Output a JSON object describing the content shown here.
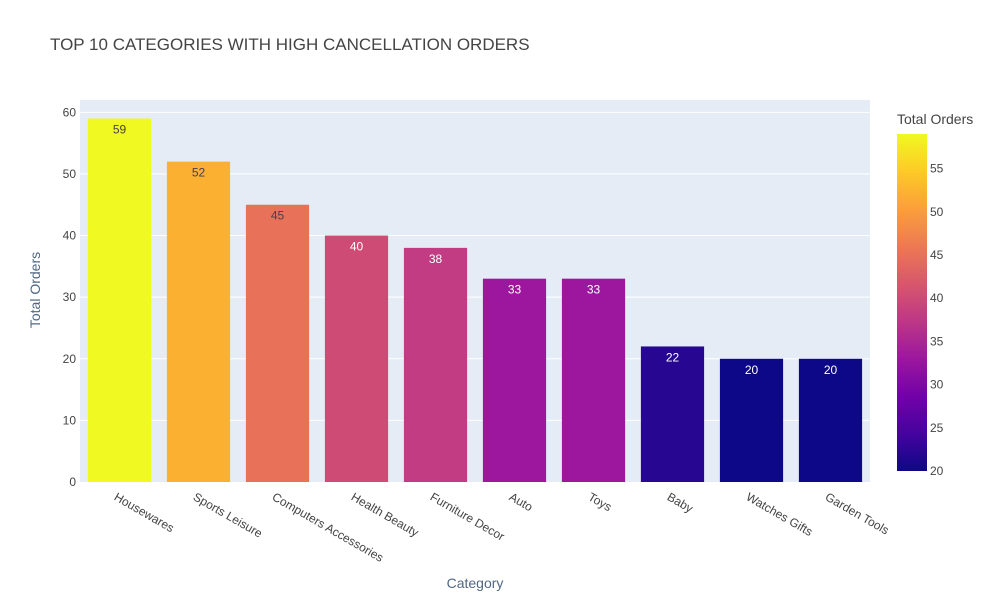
{
  "chart_data": {
    "type": "bar",
    "title": "TOP 10 CATEGORIES WITH HIGH CANCELLATION ORDERS",
    "xlabel": "Category",
    "ylabel": "Total Orders",
    "ylim": [
      0,
      62
    ],
    "yticks": [
      0,
      10,
      20,
      30,
      40,
      50,
      60
    ],
    "grid": true,
    "categories": [
      "Housewares",
      "Sports Leisure",
      "Computers Accessories",
      "Health Beauty",
      "Furniture Decor",
      "Auto",
      "Toys",
      "Baby",
      "Watches Gifts",
      "Garden Tools"
    ],
    "values": [
      59,
      52,
      45,
      40,
      38,
      33,
      33,
      22,
      20,
      20
    ],
    "colorbar": {
      "title": "Total Orders",
      "range": [
        20,
        59
      ],
      "ticks": [
        20,
        25,
        30,
        35,
        40,
        45,
        50,
        55
      ],
      "colorscale": [
        "#0d0887",
        "#46039f",
        "#7201a8",
        "#9c179e",
        "#bd3786",
        "#d8576b",
        "#ed7953",
        "#fb9f3a",
        "#fdca26",
        "#f0f921"
      ]
    },
    "colors": {
      "plot_background": "#e5ecf6",
      "gridline": "#ffffff"
    }
  }
}
